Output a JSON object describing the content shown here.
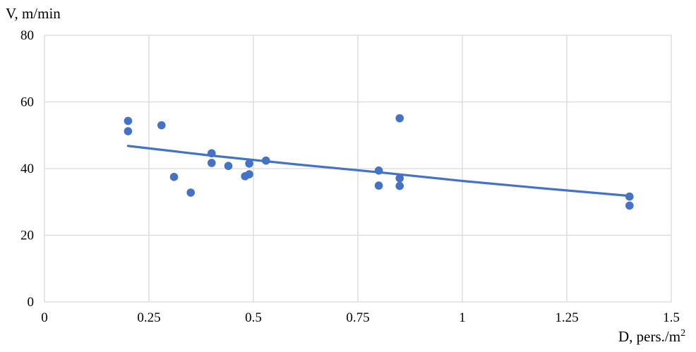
{
  "chart_data": {
    "type": "scatter",
    "title": "",
    "xlabel_main": "D, pers./m",
    "xlabel_sup": "2",
    "ylabel": "V, m/min",
    "xlim": [
      0,
      1.5
    ],
    "ylim": [
      0,
      80
    ],
    "xticks": [
      "0",
      "0.25",
      "0.5",
      "0.75",
      "1",
      "1.25",
      "1.5"
    ],
    "yticks": [
      "0",
      "20",
      "40",
      "60",
      "80"
    ],
    "grid": true,
    "colors": {
      "points": "#4472C4",
      "trend": "#4472C4",
      "grid": "#D9D9D9"
    },
    "points": [
      {
        "x": 0.2,
        "y": 54.3
      },
      {
        "x": 0.2,
        "y": 51.2
      },
      {
        "x": 0.28,
        "y": 53.0
      },
      {
        "x": 0.31,
        "y": 37.5
      },
      {
        "x": 0.35,
        "y": 32.8
      },
      {
        "x": 0.4,
        "y": 44.6
      },
      {
        "x": 0.4,
        "y": 41.7
      },
      {
        "x": 0.44,
        "y": 40.8
      },
      {
        "x": 0.48,
        "y": 37.7
      },
      {
        "x": 0.49,
        "y": 38.3
      },
      {
        "x": 0.49,
        "y": 41.5
      },
      {
        "x": 0.53,
        "y": 42.4
      },
      {
        "x": 0.8,
        "y": 39.4
      },
      {
        "x": 0.8,
        "y": 34.9
      },
      {
        "x": 0.85,
        "y": 55.1
      },
      {
        "x": 0.85,
        "y": 37.1
      },
      {
        "x": 0.85,
        "y": 34.8
      },
      {
        "x": 1.4,
        "y": 31.6
      },
      {
        "x": 1.4,
        "y": 28.9
      }
    ],
    "trendline": [
      {
        "x": 0.2,
        "y": 46.8
      },
      {
        "x": 0.4,
        "y": 43.9
      },
      {
        "x": 0.6,
        "y": 41.3
      },
      {
        "x": 0.8,
        "y": 38.9
      },
      {
        "x": 1.0,
        "y": 36.3
      },
      {
        "x": 1.2,
        "y": 34.0
      },
      {
        "x": 1.4,
        "y": 31.8
      }
    ]
  }
}
